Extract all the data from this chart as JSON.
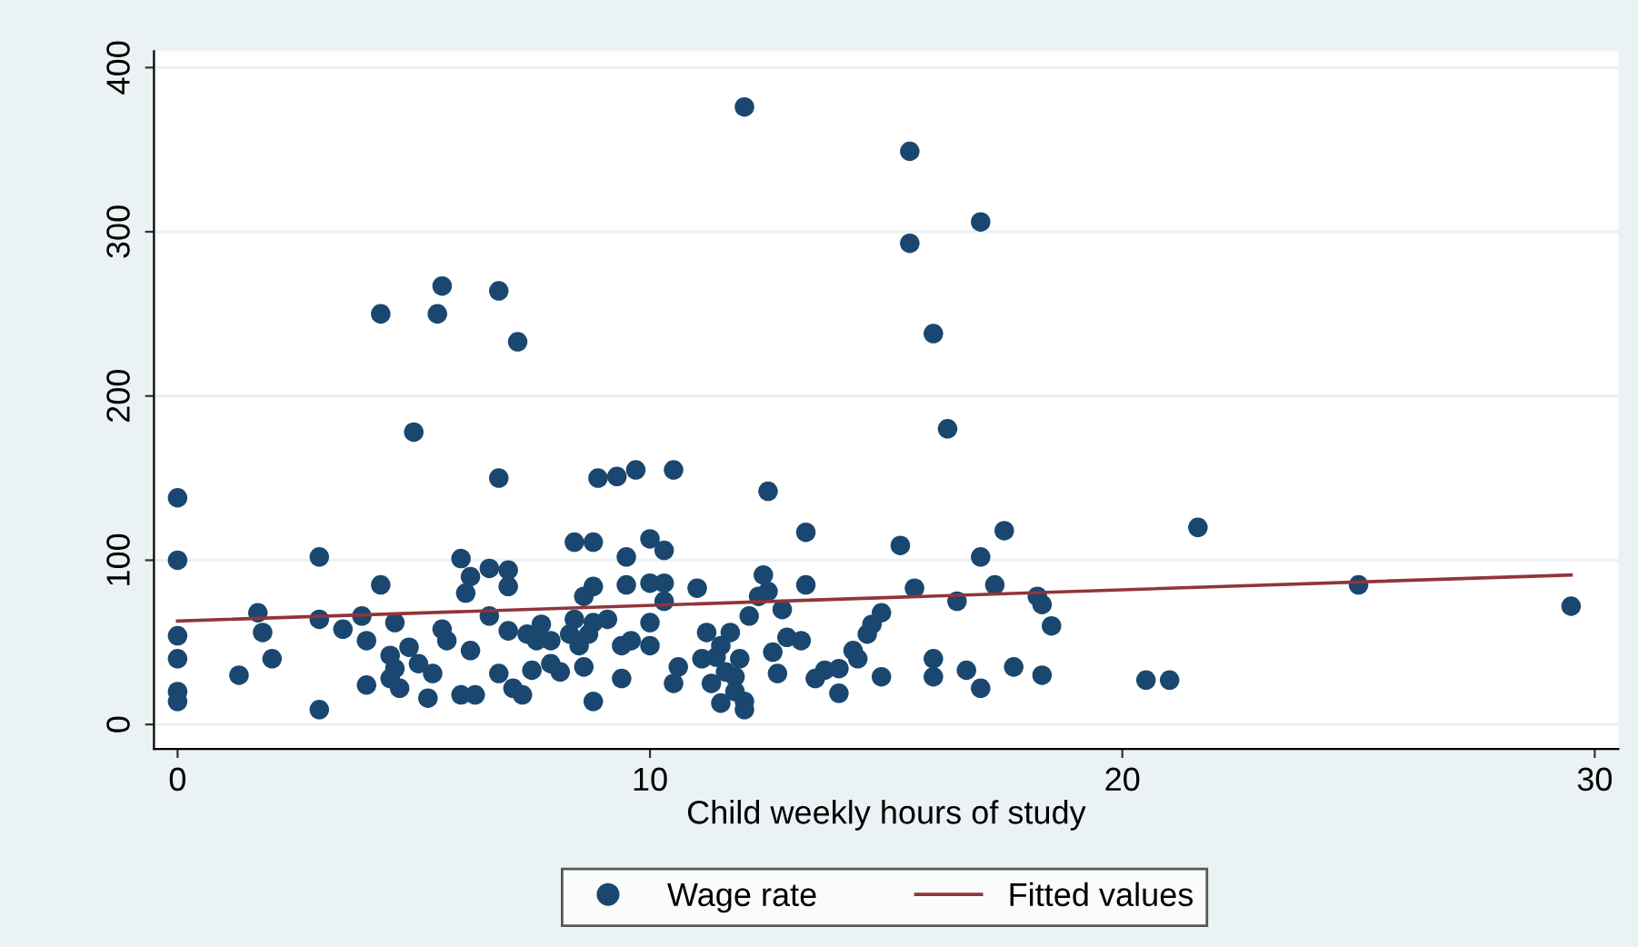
{
  "chart_data": {
    "type": "scatter",
    "xlabel": "Child weekly hours of study",
    "xlim": [
      -0.5,
      30.5
    ],
    "xticks": [
      0,
      10,
      20,
      30
    ],
    "ylim": [
      -15,
      410
    ],
    "yticks": [
      0,
      100,
      200,
      300,
      400
    ],
    "grid": "y",
    "legend": "bottom",
    "series": [
      {
        "name": "Wage rate",
        "marker": "circle",
        "color": "#1a476f",
        "x": [
          12.0,
          15.5,
          15.5,
          17.0,
          16.0,
          16.3,
          5.6,
          6.8,
          4.3,
          5.5,
          7.2,
          5.0,
          0,
          0,
          0,
          0,
          0,
          0,
          1.3,
          1.7,
          1.8,
          2.0,
          3.0,
          3.0,
          3.0,
          3.5,
          4.0,
          3.9,
          4.0,
          4.3,
          4.5,
          4.6,
          4.6,
          4.5,
          4.7,
          4.9,
          5.1,
          5.3,
          5.4,
          5.6,
          5.7,
          6.0,
          6.2,
          6.1,
          6.0,
          6.2,
          6.3,
          6.6,
          6.6,
          6.8,
          6.8,
          7.0,
          7.0,
          7.0,
          7.1,
          7.3,
          7.4,
          7.5,
          7.6,
          7.7,
          7.9,
          7.9,
          8.1,
          8.3,
          8.4,
          8.4,
          8.5,
          8.6,
          8.6,
          8.7,
          8.8,
          8.8,
          8.8,
          8.8,
          8.9,
          9.1,
          9.3,
          9.4,
          9.4,
          9.5,
          9.5,
          9.6,
          9.7,
          10.0,
          10.0,
          10.0,
          10.0,
          10.3,
          10.3,
          10.3,
          10.5,
          10.5,
          10.6,
          11.0,
          11.1,
          11.2,
          11.3,
          11.4,
          11.5,
          11.5,
          11.6,
          11.7,
          11.8,
          11.8,
          12.0,
          12.0,
          11.9,
          12.1,
          12.3,
          12.4,
          12.5,
          12.5,
          12.6,
          12.7,
          12.8,
          12.9,
          13.2,
          13.3,
          13.3,
          13.5,
          13.7,
          14.0,
          14.0,
          14.3,
          14.4,
          14.6,
          14.7,
          14.9,
          14.9,
          15.3,
          15.6,
          16.0,
          16.0,
          16.5,
          16.7,
          17.0,
          17.0,
          17.3,
          17.5,
          17.7,
          18.2,
          18.3,
          18.3,
          18.5,
          20.5,
          21.0,
          21.6,
          25.0,
          29.5
        ],
        "values": [
          376,
          349,
          293,
          306,
          238,
          180,
          267,
          264,
          250,
          250,
          233,
          178,
          138,
          100,
          54,
          40,
          20,
          14,
          30,
          68,
          56,
          40,
          102,
          64,
          9,
          58,
          51,
          66,
          24,
          85,
          42,
          34,
          62,
          28,
          22,
          47,
          37,
          16,
          31,
          58,
          51,
          101,
          90,
          80,
          18,
          45,
          18,
          66,
          95,
          150,
          31,
          94,
          84,
          57,
          22,
          18,
          55,
          33,
          51,
          61,
          51,
          37,
          32,
          55,
          64,
          111,
          48,
          78,
          35,
          55,
          14,
          111,
          84,
          62,
          150,
          64,
          151,
          48,
          28,
          102,
          85,
          51,
          155,
          113,
          86,
          62,
          48,
          106,
          75,
          86,
          155,
          25,
          35,
          83,
          40,
          56,
          25,
          41,
          13,
          48,
          32,
          56,
          29,
          20,
          14,
          9,
          40,
          66,
          78,
          91,
          81,
          142,
          44,
          31,
          70,
          53,
          51,
          117,
          85,
          28,
          33,
          19,
          34,
          45,
          40,
          55,
          61,
          68,
          29,
          109,
          83,
          40,
          29,
          75,
          33,
          102,
          22,
          85,
          118,
          35,
          78,
          73,
          30,
          60,
          27,
          27,
          120,
          85,
          72
        ]
      },
      {
        "name": "Fitted values",
        "type": "line",
        "color": "#90353b",
        "x": [
          0,
          29.5
        ],
        "values": [
          63,
          91
        ]
      }
    ]
  }
}
